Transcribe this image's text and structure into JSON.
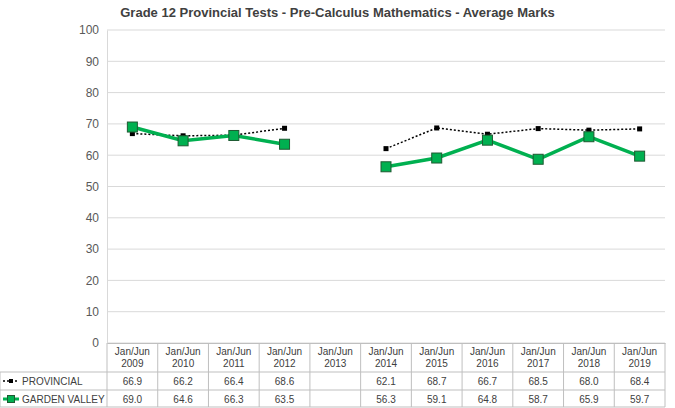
{
  "chart_data": {
    "type": "line",
    "title": "Grade 12 Provincial Tests - Pre-Calculus Mathematics - Average Marks",
    "categories": [
      "Jan/Jun 2009",
      "Jan/Jun 2010",
      "Jan/Jun 2011",
      "Jan/Jun 2012",
      "Jan/Jun 2013",
      "Jan/Jun 2014",
      "Jan/Jun 2015",
      "Jan/Jun 2016",
      "Jan/Jun 2017",
      "Jan/Jun 2018",
      "Jan/Jun 2019"
    ],
    "series": [
      {
        "name": "PROVINCIAL",
        "color": "#000000",
        "marker": "square",
        "line_style": "dotted",
        "values": [
          66.9,
          66.2,
          66.4,
          68.6,
          null,
          62.1,
          68.7,
          66.7,
          68.5,
          68.0,
          68.4
        ],
        "value_labels": [
          "66.9",
          "66.2",
          "66.4",
          "68.6",
          null,
          "62.1",
          "68.7",
          "66.7",
          "68.5",
          "68.0",
          "68.4"
        ]
      },
      {
        "name": "GARDEN VALLEY",
        "color": "#00b050",
        "marker": "square",
        "line_style": "solid",
        "values": [
          69.0,
          64.6,
          66.3,
          63.5,
          null,
          56.3,
          59.1,
          64.8,
          58.7,
          65.9,
          59.7
        ],
        "value_labels": [
          "69.0",
          "64.6",
          "66.3",
          "63.5",
          null,
          "56.3",
          "59.1",
          "64.8",
          "58.7",
          "65.9",
          "59.7"
        ]
      }
    ],
    "ylim": [
      0,
      100
    ],
    "yticks": [
      0,
      10,
      20,
      30,
      40,
      50,
      60,
      70,
      80,
      90,
      100
    ],
    "grid": true,
    "legend": "bottom",
    "data_labels": true
  }
}
